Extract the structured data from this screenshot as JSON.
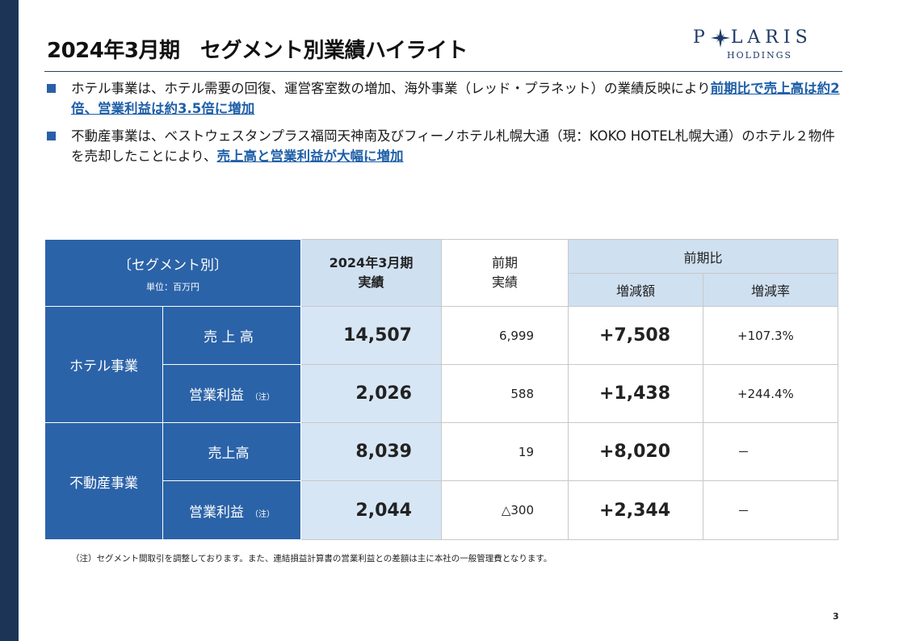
{
  "header": {
    "title": "2024年3月期　セグメント別業績ハイライト",
    "logo_word": "P LARIS",
    "logo_sub": "HOLDINGS"
  },
  "bullets": [
    {
      "pre": "ホテル事業は、ホテル需要の回復、運営客室数の増加、海外事業（レッド・プラネット）の業績反映により",
      "highlight": "前期比で売上高は約2倍、営業利益は約3.5倍に増加",
      "post": ""
    },
    {
      "pre": "不動産事業は、ベストウェスタンプラス福岡天神南及びフィーノホテル札幌大通（現：KOKO HOTEL札幌大通）のホテル２物件を売却したことにより、",
      "highlight": "売上高と営業利益が大幅に増加",
      "post": ""
    }
  ],
  "table": {
    "segment_header": "〔セグメント別〕",
    "unit": "単位：百万円",
    "current_header_1": "2024年3月期",
    "current_header_2": "実績",
    "prev_header_1": "前期",
    "prev_header_2": "実績",
    "compare_header": "前期比",
    "diff_header": "増減額",
    "rate_header": "増減率",
    "segments": [
      {
        "name": "ホテル事業",
        "rows": [
          {
            "item": "売 上 高",
            "note": "",
            "current": "14,507",
            "prev": "6,999",
            "diff": "+7,508",
            "rate": "+107.3%"
          },
          {
            "item": "営業利益",
            "note": "（注）",
            "current": "2,026",
            "prev": "588",
            "diff": "+1,438",
            "rate": "+244.4%"
          }
        ]
      },
      {
        "name": "不動産事業",
        "rows": [
          {
            "item": "売上高",
            "note": "",
            "current": "8,039",
            "prev": "19",
            "diff": "+8,020",
            "rate": "－"
          },
          {
            "item": "営業利益",
            "note": "（注）",
            "current": "2,044",
            "prev": "△300",
            "diff": "+2,344",
            "rate": "－"
          }
        ]
      }
    ]
  },
  "footnote": "（注）セグメント間取引を調整しております。また、連結損益計算書の営業利益との差額は主に本社の一般管理費となります。",
  "page_number": "3",
  "colors": {
    "sidebar": "#1c3557",
    "header_dark": "#2b63a8",
    "header_light": "#cfe0f1",
    "highlight_text": "#1f5fa8",
    "logo": "#1d3a66"
  }
}
